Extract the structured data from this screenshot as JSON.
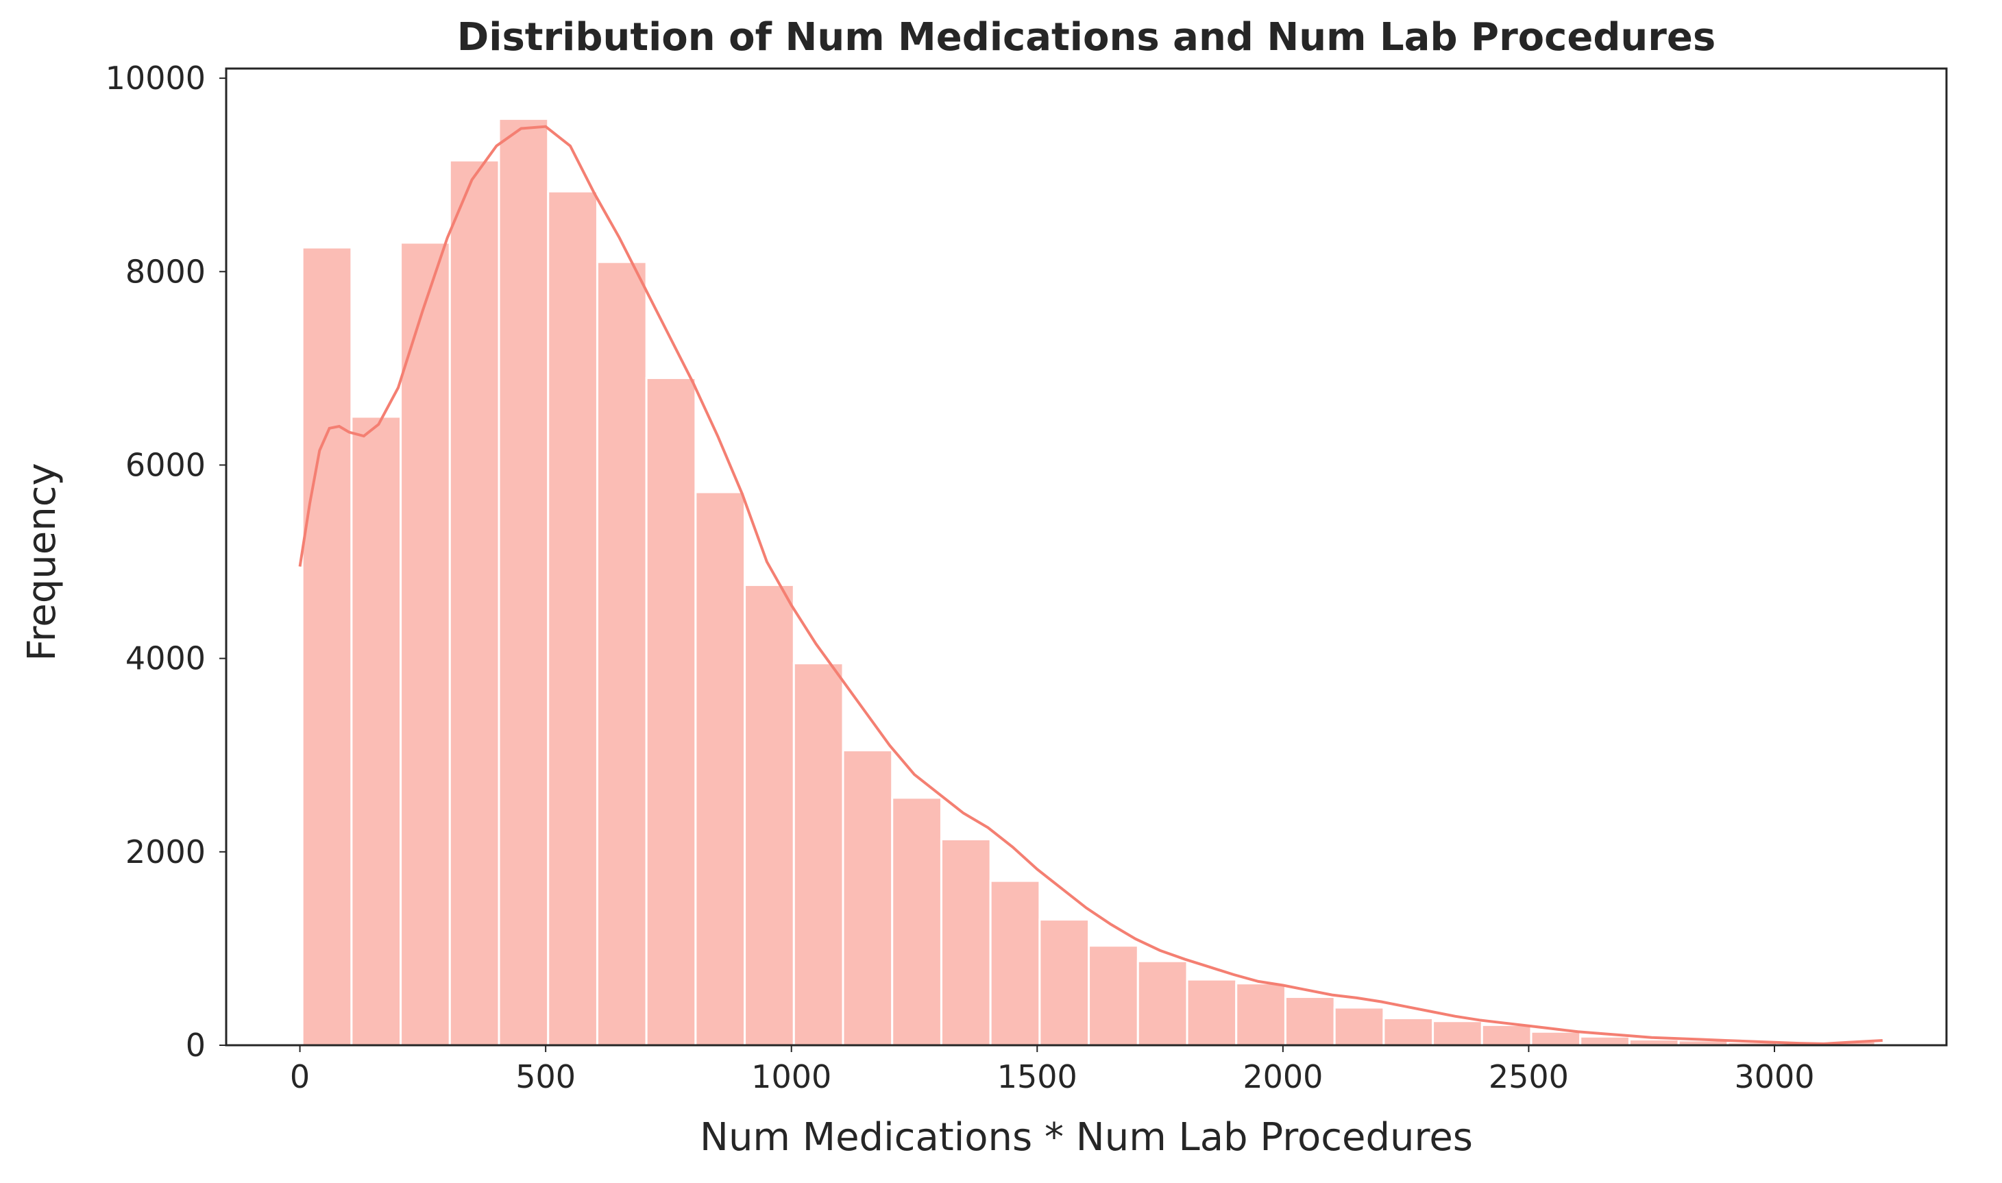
{
  "chart_data": {
    "type": "bar",
    "subtype": "histogram_with_kde",
    "title": "Distribution of Num Medications and Num Lab Procedures",
    "xlabel": "Num Medications * Num Lab Procedures",
    "ylabel": "Frequency",
    "xlim": [
      -150,
      3350
    ],
    "ylim": [
      0,
      10100
    ],
    "grid": false,
    "bar_color": "#fbbdb5",
    "bar_edge_color": "#ffffff",
    "kde_color": "#f47f72",
    "x_ticks": [
      0,
      500,
      1000,
      1500,
      2000,
      2500,
      3000
    ],
    "x_tick_labels": [
      "0",
      "500",
      "1000",
      "1500",
      "2000",
      "2500",
      "3000"
    ],
    "y_ticks": [
      0,
      2000,
      4000,
      6000,
      8000,
      10000
    ],
    "y_tick_labels": [
      "0",
      "2000",
      "4000",
      "6000",
      "8000",
      "10000"
    ],
    "bin_edges": [
      5,
      105,
      205,
      305,
      405,
      505,
      605,
      705,
      805,
      905,
      1005,
      1105,
      1205,
      1305,
      1405,
      1505,
      1605,
      1705,
      1805,
      1905,
      2005,
      2105,
      2205,
      2305,
      2405,
      2505,
      2605,
      2705,
      2805,
      2905,
      3005,
      3105,
      3205
    ],
    "values": [
      8250,
      6500,
      8300,
      9150,
      9580,
      8830,
      8100,
      6900,
      5720,
      4760,
      3950,
      3050,
      2560,
      2130,
      1700,
      1300,
      1030,
      870,
      680,
      640,
      500,
      390,
      280,
      250,
      210,
      140,
      90,
      60,
      50,
      30,
      20,
      40
    ],
    "kde": {
      "x": [
        0,
        20,
        40,
        60,
        80,
        100,
        130,
        160,
        200,
        250,
        300,
        350,
        400,
        450,
        500,
        550,
        600,
        650,
        700,
        750,
        800,
        850,
        900,
        950,
        1000,
        1050,
        1100,
        1150,
        1200,
        1250,
        1300,
        1350,
        1400,
        1450,
        1500,
        1550,
        1600,
        1650,
        1700,
        1750,
        1800,
        1850,
        1900,
        1950,
        2000,
        2050,
        2100,
        2150,
        2200,
        2250,
        2300,
        2350,
        2400,
        2450,
        2500,
        2550,
        2600,
        2650,
        2700,
        2750,
        2800,
        2850,
        2900,
        2950,
        3000,
        3050,
        3100,
        3150,
        3220
      ],
      "y": [
        4950,
        5600,
        6150,
        6380,
        6400,
        6340,
        6300,
        6420,
        6800,
        7600,
        8350,
        8950,
        9300,
        9480,
        9500,
        9300,
        8800,
        8350,
        7850,
        7350,
        6850,
        6300,
        5700,
        5000,
        4550,
        4150,
        3800,
        3450,
        3100,
        2800,
        2600,
        2400,
        2250,
        2050,
        1820,
        1620,
        1420,
        1250,
        1100,
        980,
        890,
        810,
        730,
        660,
        620,
        570,
        520,
        490,
        450,
        400,
        350,
        300,
        260,
        230,
        200,
        170,
        140,
        120,
        100,
        80,
        70,
        60,
        50,
        40,
        30,
        20,
        15,
        30,
        50
      ]
    }
  }
}
